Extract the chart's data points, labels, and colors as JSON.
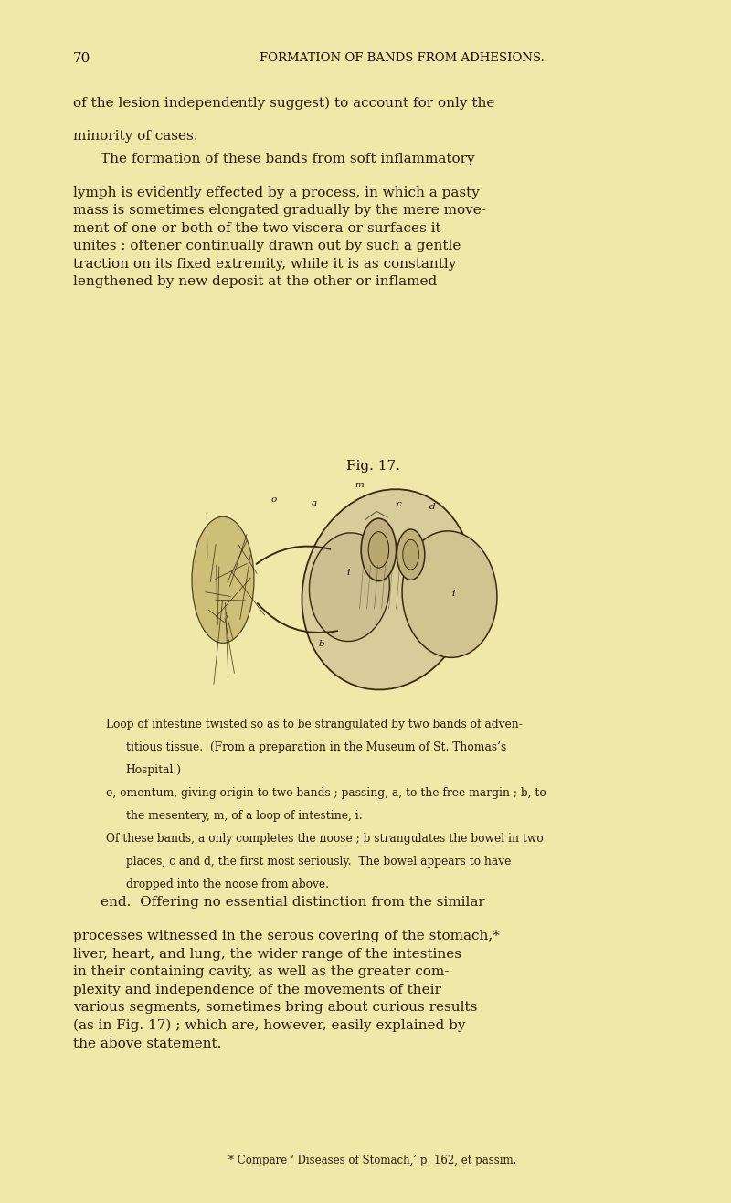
{
  "bg_color": "#f0e8a8",
  "page_color": "#ede4a0",
  "text_color": "#2a1a0a",
  "heading_color": "#1a0a00",
  "page_number": "70",
  "header_title": "FORMATION OF BANDS FROM ADHESIONS.",
  "paragraph1_line1": "of the lesion independently suggest) to account for only the",
  "paragraph1_line2": "minority of cases.",
  "paragraph2_line1": "The formation of these bands from soft inflammatory",
  "paragraph2_rest": "lymph is evidently effected by a process, in which a pasty\nmass is sometimes elongated gradually by the mere move-\nment of one or both of the two viscera or surfaces it\nunites ; oftener continually drawn out by such a gentle\ntraction on its fixed extremity, while it is as constantly\nlengthened by new deposit at the other or inflamed",
  "fig_label": "Fig. 17.",
  "caption_line1": "Loop of intestine twisted so as to be strangulated by two bands of adven-",
  "caption_line2": "titious tissue.  (From a preparation in the Museum of St. Thomas’s",
  "caption_line3": "Hospital.)",
  "caption_o": "o, omentum, giving origin to two bands ; passing, a, to the free margin ; b, to",
  "caption_o2": "the mesentery, m, of a loop of intestine, i.",
  "caption_of": "Of these bands, a only completes the noose ; b strangulates the bowel in two",
  "caption_of2": "places, c and d, the first most seriously.  The bowel appears to have",
  "caption_of3": "dropped into the noose from above.",
  "paragraph3_line1": "end.  Offering no essential distinction from the similar",
  "paragraph3_rest": "processes witnessed in the serous covering of the stomach,*\nliver, heart, and lung, the wider range of the intestines\nin their containing cavity, as well as the greater com-\nplexity and independence of the movements of their\nvarious segments, sometimes bring about curious results\n(as in Fig. 17) ; which are, however, easily explained by\nthe above statement.",
  "footnote": "* Compare ‘ Diseases of Stomach,’ p. 162, et passim.",
  "lm": 0.1,
  "rm": 0.92,
  "header_fontsize": 9.5,
  "body_fontsize": 11.0,
  "caption_fontsize": 8.8,
  "small_fontsize": 8.5
}
